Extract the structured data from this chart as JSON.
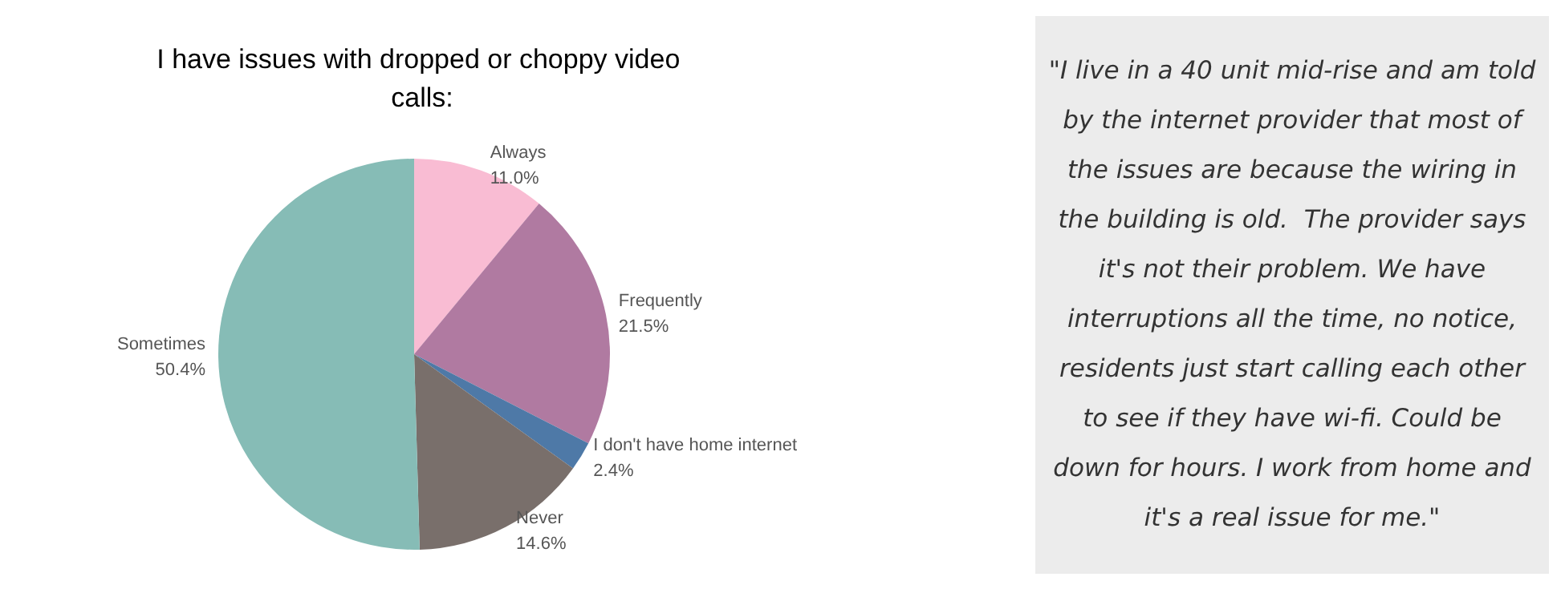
{
  "chart_data": [
    {
      "type": "pie",
      "title": "I have issues with dropped or choppy video calls:",
      "categories": [
        "Always",
        "Frequently",
        "I don't have home internet",
        "Never",
        "Sometimes"
      ],
      "values": [
        11.0,
        21.5,
        2.4,
        14.6,
        50.4
      ],
      "value_labels": [
        "11.0%",
        "21.5%",
        "2.4%",
        "14.6%",
        "50.4%"
      ],
      "colors": [
        "#f9bcd3",
        "#b07aa1",
        "#4e79a7",
        "#796f6b",
        "#86bcb6"
      ],
      "legend": false
    },
    {
      "type": "other",
      "annotations": [
        "\"I live in a 40 unit mid-rise and am told by the internet provider that most of the issues are because the wiring in the building is old.  The provider says it's not their problem. We have interruptions all the time, no notice, residents just start calling each other to see if they have wi-fi. Could be down for hours. I work from home and it's a real issue for me.\""
      ]
    }
  ]
}
